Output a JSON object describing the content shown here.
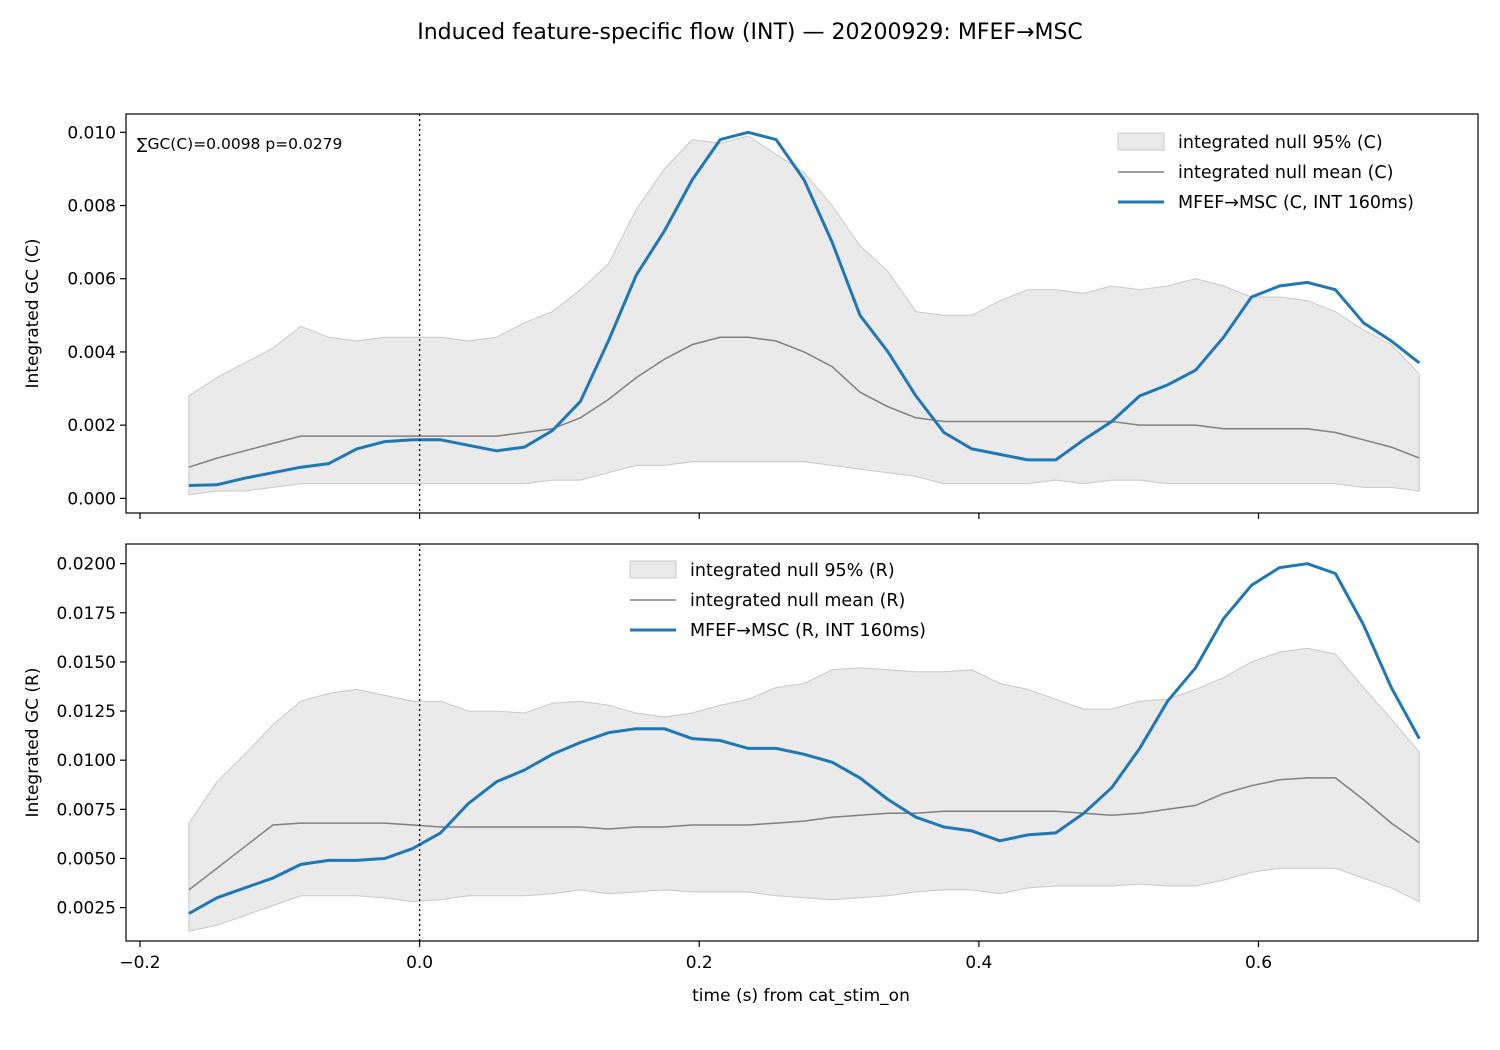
{
  "figure": {
    "suptitle": "Induced feature-specific flow (INT) — 20200929: MFEF→MSC"
  },
  "chart_data": [
    {
      "type": "line",
      "panel": "top",
      "ylabel": "Integrated GC (C)",
      "xlabel": "",
      "xlim": [
        -0.21,
        0.757
      ],
      "ylim": [
        -0.0004,
        0.0105
      ],
      "xticks": [
        -0.2,
        0.0,
        0.2,
        0.4,
        0.6
      ],
      "xtick_labels": [],
      "yticks": [
        0.0,
        0.002,
        0.004,
        0.006,
        0.008,
        0.01
      ],
      "ytick_labels": [
        "0.000",
        "0.002",
        "0.004",
        "0.006",
        "0.008",
        "0.010"
      ],
      "annotation": "∑GC(C)=0.0098  p=0.0279",
      "vline_x": 0.0,
      "legend_position": "upper right",
      "legend": {
        "band": "integrated null 95% (C)",
        "mean": "integrated null mean (C)",
        "line": "MFEF→MSC (C, INT 160ms)"
      },
      "colors": {
        "line": "#1f77b4",
        "mean": "#808080",
        "band": "#d9d9d9"
      },
      "x": [
        -0.165,
        -0.145,
        -0.125,
        -0.105,
        -0.085,
        -0.065,
        -0.045,
        -0.025,
        -0.005,
        0.015,
        0.035,
        0.055,
        0.075,
        0.095,
        0.115,
        0.135,
        0.155,
        0.175,
        0.195,
        0.215,
        0.235,
        0.255,
        0.275,
        0.295,
        0.315,
        0.335,
        0.355,
        0.375,
        0.395,
        0.415,
        0.435,
        0.455,
        0.475,
        0.495,
        0.515,
        0.535,
        0.555,
        0.575,
        0.595,
        0.615,
        0.635,
        0.655,
        0.675,
        0.695,
        0.715
      ],
      "band_upper": [
        0.0028,
        0.0033,
        0.0037,
        0.0041,
        0.0047,
        0.0044,
        0.0043,
        0.0044,
        0.0044,
        0.0044,
        0.0043,
        0.0044,
        0.0048,
        0.0051,
        0.0057,
        0.0064,
        0.0079,
        0.009,
        0.0098,
        0.0097,
        0.0099,
        0.0094,
        0.0089,
        0.008,
        0.0069,
        0.0062,
        0.0051,
        0.005,
        0.005,
        0.0054,
        0.0057,
        0.0057,
        0.0056,
        0.0058,
        0.0057,
        0.0058,
        0.006,
        0.0058,
        0.0055,
        0.0055,
        0.0054,
        0.0051,
        0.0046,
        0.0042,
        0.0034
      ],
      "band_lower": [
        0.0001,
        0.0002,
        0.0002,
        0.0003,
        0.0004,
        0.0004,
        0.0004,
        0.0004,
        0.0004,
        0.0004,
        0.0004,
        0.0004,
        0.0004,
        0.0005,
        0.0005,
        0.0007,
        0.0009,
        0.0009,
        0.001,
        0.001,
        0.001,
        0.001,
        0.001,
        0.0009,
        0.0008,
        0.0007,
        0.0006,
        0.0004,
        0.0004,
        0.0004,
        0.0004,
        0.0005,
        0.0004,
        0.0005,
        0.0005,
        0.0004,
        0.0004,
        0.0004,
        0.0004,
        0.0004,
        0.0004,
        0.0004,
        0.0003,
        0.0003,
        0.0002
      ],
      "null_mean": [
        0.00085,
        0.0011,
        0.0013,
        0.0015,
        0.0017,
        0.0017,
        0.0017,
        0.0017,
        0.0017,
        0.0017,
        0.0017,
        0.0017,
        0.0018,
        0.0019,
        0.0022,
        0.0027,
        0.0033,
        0.0038,
        0.0042,
        0.0044,
        0.0044,
        0.0043,
        0.004,
        0.0036,
        0.0029,
        0.0025,
        0.0022,
        0.0021,
        0.0021,
        0.0021,
        0.0021,
        0.0021,
        0.0021,
        0.0021,
        0.002,
        0.002,
        0.002,
        0.0019,
        0.0019,
        0.0019,
        0.0019,
        0.0018,
        0.0016,
        0.0014,
        0.0011
      ],
      "values": [
        0.00035,
        0.00037,
        0.00055,
        0.0007,
        0.00085,
        0.00095,
        0.00135,
        0.00155,
        0.0016,
        0.0016,
        0.00145,
        0.0013,
        0.0014,
        0.00185,
        0.00265,
        0.0043,
        0.0061,
        0.0073,
        0.0087,
        0.0098,
        0.01,
        0.0098,
        0.0087,
        0.007,
        0.005,
        0.004,
        0.0028,
        0.0018,
        0.00135,
        0.0012,
        0.00105,
        0.00105,
        0.0016,
        0.0021,
        0.0028,
        0.0031,
        0.0035,
        0.0044,
        0.0055,
        0.0058,
        0.0059,
        0.0057,
        0.0048,
        0.0043,
        0.0037
      ]
    },
    {
      "type": "line",
      "panel": "bottom",
      "ylabel": "Integrated GC (R)",
      "xlabel": "time (s) from cat_stim_on",
      "xlim": [
        -0.21,
        0.757
      ],
      "ylim": [
        0.0008,
        0.021
      ],
      "xticks": [
        -0.2,
        0.0,
        0.2,
        0.4,
        0.6
      ],
      "xtick_labels": [
        "−0.2",
        "0.0",
        "0.2",
        "0.4",
        "0.6"
      ],
      "yticks": [
        0.0025,
        0.005,
        0.0075,
        0.01,
        0.0125,
        0.015,
        0.0175,
        0.02
      ],
      "ytick_labels": [
        "0.0025",
        "0.0050",
        "0.0075",
        "0.0100",
        "0.0125",
        "0.0150",
        "0.0175",
        "0.0200"
      ],
      "annotation": "",
      "vline_x": 0.0,
      "legend_position": "upper center",
      "legend": {
        "band": "integrated null 95% (R)",
        "mean": "integrated null mean (R)",
        "line": "MFEF→MSC (R, INT 160ms)"
      },
      "colors": {
        "line": "#1f77b4",
        "mean": "#808080",
        "band": "#d9d9d9"
      },
      "x": [
        -0.165,
        -0.145,
        -0.125,
        -0.105,
        -0.085,
        -0.065,
        -0.045,
        -0.025,
        -0.005,
        0.015,
        0.035,
        0.055,
        0.075,
        0.095,
        0.115,
        0.135,
        0.155,
        0.175,
        0.195,
        0.215,
        0.235,
        0.255,
        0.275,
        0.295,
        0.315,
        0.335,
        0.355,
        0.375,
        0.395,
        0.415,
        0.435,
        0.455,
        0.475,
        0.495,
        0.515,
        0.535,
        0.555,
        0.575,
        0.595,
        0.615,
        0.635,
        0.655,
        0.675,
        0.695,
        0.715
      ],
      "band_upper": [
        0.0068,
        0.0089,
        0.0103,
        0.0118,
        0.013,
        0.0134,
        0.0136,
        0.0133,
        0.013,
        0.013,
        0.0125,
        0.0125,
        0.0124,
        0.0129,
        0.013,
        0.0128,
        0.0124,
        0.0122,
        0.0124,
        0.0128,
        0.0131,
        0.0137,
        0.0139,
        0.0146,
        0.0147,
        0.0146,
        0.0145,
        0.0145,
        0.0146,
        0.0139,
        0.0136,
        0.0131,
        0.0126,
        0.0126,
        0.013,
        0.0131,
        0.0136,
        0.0142,
        0.015,
        0.0155,
        0.0157,
        0.0154,
        0.0137,
        0.0121,
        0.0104
      ],
      "band_lower": [
        0.0013,
        0.0016,
        0.0021,
        0.0026,
        0.0031,
        0.0031,
        0.0031,
        0.003,
        0.0028,
        0.0029,
        0.0031,
        0.0031,
        0.0031,
        0.0032,
        0.0034,
        0.0032,
        0.0033,
        0.0034,
        0.0033,
        0.0033,
        0.0033,
        0.0031,
        0.003,
        0.0029,
        0.003,
        0.0031,
        0.0033,
        0.0034,
        0.0034,
        0.0032,
        0.0035,
        0.0036,
        0.0036,
        0.0036,
        0.0037,
        0.0036,
        0.0036,
        0.0039,
        0.0043,
        0.0045,
        0.0045,
        0.0045,
        0.004,
        0.0035,
        0.0028
      ],
      "null_mean": [
        0.0034,
        0.0045,
        0.0056,
        0.0067,
        0.0068,
        0.0068,
        0.0068,
        0.0068,
        0.0067,
        0.0066,
        0.0066,
        0.0066,
        0.0066,
        0.0066,
        0.0066,
        0.0065,
        0.0066,
        0.0066,
        0.0067,
        0.0067,
        0.0067,
        0.0068,
        0.0069,
        0.0071,
        0.0072,
        0.0073,
        0.0073,
        0.0074,
        0.0074,
        0.0074,
        0.0074,
        0.0074,
        0.0073,
        0.0072,
        0.0073,
        0.0075,
        0.0077,
        0.0083,
        0.0087,
        0.009,
        0.0091,
        0.0091,
        0.008,
        0.0068,
        0.0058
      ],
      "values": [
        0.0022,
        0.003,
        0.0035,
        0.004,
        0.0047,
        0.0049,
        0.0049,
        0.005,
        0.0055,
        0.0063,
        0.0078,
        0.0089,
        0.0095,
        0.0103,
        0.0109,
        0.0114,
        0.0116,
        0.0116,
        0.0111,
        0.011,
        0.0106,
        0.0106,
        0.0103,
        0.0099,
        0.0091,
        0.008,
        0.0071,
        0.0066,
        0.0064,
        0.0059,
        0.0062,
        0.0063,
        0.0073,
        0.0086,
        0.0106,
        0.013,
        0.0147,
        0.0172,
        0.0189,
        0.0198,
        0.02,
        0.0195,
        0.0169,
        0.0137,
        0.0111
      ]
    }
  ]
}
